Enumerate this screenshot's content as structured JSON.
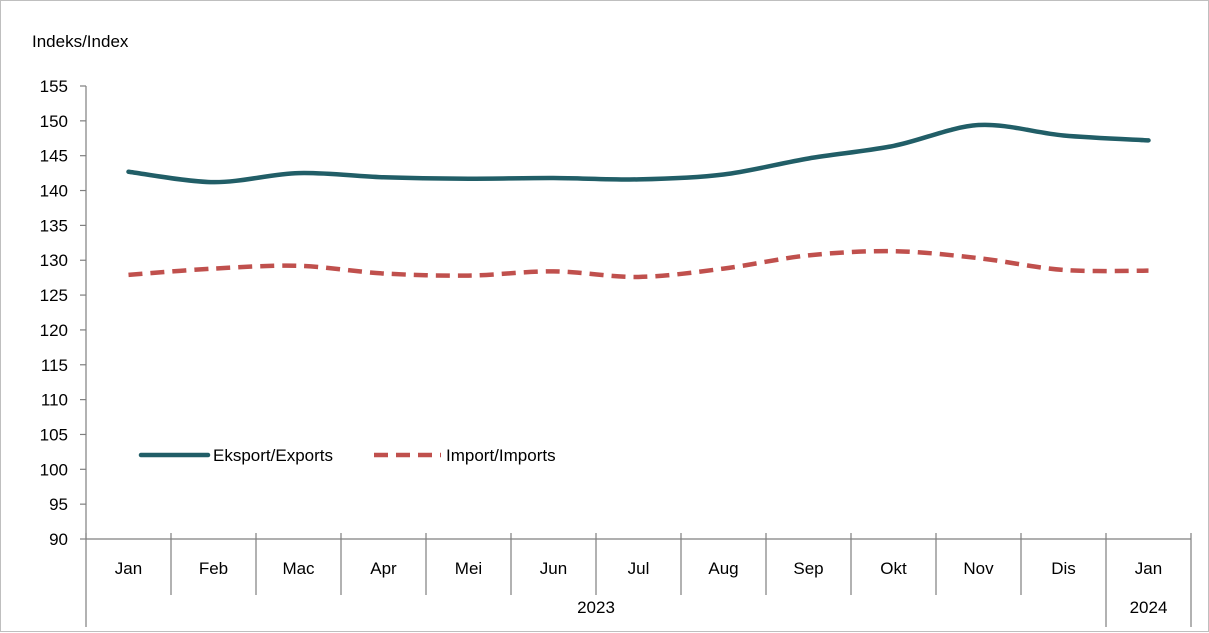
{
  "chart_data": {
    "type": "line",
    "ylabel": "Indeks/Index",
    "ylim": [
      90,
      155
    ],
    "yticks": [
      90,
      95,
      100,
      105,
      110,
      115,
      120,
      125,
      130,
      135,
      140,
      145,
      150,
      155
    ],
    "categories": [
      "Jan",
      "Feb",
      "Mac",
      "Apr",
      "Mei",
      "Jun",
      "Jul",
      "Aug",
      "Sep",
      "Okt",
      "Nov",
      "Dis",
      "Jan"
    ],
    "year_groups": [
      {
        "label": "2023",
        "span": 12
      },
      {
        "label": "2024",
        "span": 1
      }
    ],
    "series": [
      {
        "name": "Eksport/Exports",
        "color": "#215e67",
        "style": "solid",
        "values": [
          142.7,
          141.2,
          142.5,
          141.9,
          141.7,
          141.8,
          141.6,
          142.3,
          144.6,
          146.4,
          149.4,
          147.9,
          147.2
        ]
      },
      {
        "name": "Import/Imports",
        "color": "#c0504d",
        "style": "dashed",
        "values": [
          127.9,
          128.8,
          129.2,
          128.1,
          127.8,
          128.4,
          127.6,
          128.8,
          130.7,
          131.3,
          130.3,
          128.6,
          128.5
        ]
      }
    ],
    "legend_position": "lower-left",
    "grid": false
  }
}
